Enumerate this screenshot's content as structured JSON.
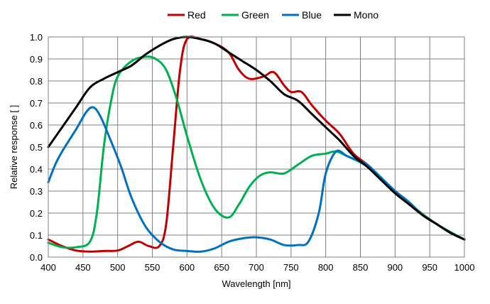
{
  "chart_data": {
    "type": "line",
    "xlabel": "Wavelength  [nm]",
    "ylabel": "Relative response [ ]",
    "xlim": [
      400,
      1000
    ],
    "ylim": [
      0.0,
      1.0
    ],
    "x_ticks": [
      "400",
      "450",
      "500",
      "550",
      "600",
      "650",
      "700",
      "750",
      "800",
      "850",
      "900",
      "950",
      "1000"
    ],
    "y_ticks": [
      "0.0",
      "0.1",
      "0.2",
      "0.3",
      "0.4",
      "0.5",
      "0.6",
      "0.7",
      "0.8",
      "0.9",
      "1.0"
    ],
    "grid": true,
    "legend_position": "top",
    "series": [
      {
        "name": "Red",
        "color": "#c00000",
        "points": [
          [
            400,
            0.08
          ],
          [
            420,
            0.05
          ],
          [
            440,
            0.03
          ],
          [
            460,
            0.025
          ],
          [
            480,
            0.028
          ],
          [
            500,
            0.03
          ],
          [
            515,
            0.05
          ],
          [
            530,
            0.07
          ],
          [
            545,
            0.05
          ],
          [
            560,
            0.05
          ],
          [
            570,
            0.15
          ],
          [
            580,
            0.5
          ],
          [
            590,
            0.85
          ],
          [
            600,
            0.99
          ],
          [
            620,
            0.99
          ],
          [
            640,
            0.97
          ],
          [
            660,
            0.93
          ],
          [
            675,
            0.85
          ],
          [
            690,
            0.81
          ],
          [
            710,
            0.82
          ],
          [
            725,
            0.84
          ],
          [
            740,
            0.78
          ],
          [
            750,
            0.75
          ],
          [
            765,
            0.75
          ],
          [
            780,
            0.69
          ],
          [
            800,
            0.62
          ],
          [
            820,
            0.56
          ],
          [
            840,
            0.47
          ],
          [
            860,
            0.42
          ],
          [
            880,
            0.36
          ],
          [
            900,
            0.3
          ],
          [
            920,
            0.25
          ],
          [
            940,
            0.19
          ],
          [
            960,
            0.15
          ],
          [
            980,
            0.11
          ],
          [
            1000,
            0.08
          ]
        ]
      },
      {
        "name": "Green",
        "color": "#00b050",
        "points": [
          [
            400,
            0.065
          ],
          [
            420,
            0.045
          ],
          [
            440,
            0.045
          ],
          [
            460,
            0.07
          ],
          [
            470,
            0.2
          ],
          [
            480,
            0.5
          ],
          [
            490,
            0.7
          ],
          [
            500,
            0.82
          ],
          [
            520,
            0.89
          ],
          [
            540,
            0.91
          ],
          [
            555,
            0.9
          ],
          [
            570,
            0.85
          ],
          [
            585,
            0.72
          ],
          [
            600,
            0.55
          ],
          [
            620,
            0.35
          ],
          [
            640,
            0.22
          ],
          [
            660,
            0.18
          ],
          [
            675,
            0.24
          ],
          [
            690,
            0.32
          ],
          [
            705,
            0.37
          ],
          [
            720,
            0.385
          ],
          [
            740,
            0.38
          ],
          [
            760,
            0.42
          ],
          [
            780,
            0.46
          ],
          [
            800,
            0.47
          ],
          [
            815,
            0.48
          ],
          [
            830,
            0.46
          ],
          [
            850,
            0.43
          ],
          [
            870,
            0.39
          ],
          [
            900,
            0.3
          ],
          [
            930,
            0.22
          ],
          [
            960,
            0.15
          ],
          [
            1000,
            0.08
          ]
        ]
      },
      {
        "name": "Blue",
        "color": "#0070c0",
        "points": [
          [
            400,
            0.34
          ],
          [
            410,
            0.42
          ],
          [
            420,
            0.48
          ],
          [
            440,
            0.58
          ],
          [
            455,
            0.66
          ],
          [
            465,
            0.68
          ],
          [
            475,
            0.64
          ],
          [
            490,
            0.53
          ],
          [
            505,
            0.41
          ],
          [
            520,
            0.27
          ],
          [
            540,
            0.14
          ],
          [
            560,
            0.07
          ],
          [
            580,
            0.035
          ],
          [
            600,
            0.028
          ],
          [
            620,
            0.025
          ],
          [
            640,
            0.04
          ],
          [
            660,
            0.07
          ],
          [
            680,
            0.085
          ],
          [
            700,
            0.09
          ],
          [
            720,
            0.08
          ],
          [
            740,
            0.055
          ],
          [
            760,
            0.055
          ],
          [
            775,
            0.07
          ],
          [
            790,
            0.2
          ],
          [
            800,
            0.38
          ],
          [
            815,
            0.48
          ],
          [
            830,
            0.46
          ],
          [
            845,
            0.44
          ],
          [
            860,
            0.42
          ],
          [
            880,
            0.36
          ],
          [
            900,
            0.3
          ],
          [
            920,
            0.25
          ],
          [
            940,
            0.19
          ],
          [
            960,
            0.15
          ],
          [
            980,
            0.11
          ],
          [
            1000,
            0.08
          ]
        ]
      },
      {
        "name": "Mono",
        "color": "#000000",
        "points": [
          [
            400,
            0.5
          ],
          [
            420,
            0.59
          ],
          [
            440,
            0.68
          ],
          [
            460,
            0.77
          ],
          [
            480,
            0.81
          ],
          [
            500,
            0.84
          ],
          [
            520,
            0.87
          ],
          [
            540,
            0.92
          ],
          [
            560,
            0.96
          ],
          [
            580,
            0.99
          ],
          [
            600,
            1.0
          ],
          [
            620,
            0.99
          ],
          [
            640,
            0.97
          ],
          [
            660,
            0.93
          ],
          [
            680,
            0.89
          ],
          [
            700,
            0.85
          ],
          [
            720,
            0.8
          ],
          [
            740,
            0.74
          ],
          [
            760,
            0.71
          ],
          [
            780,
            0.65
          ],
          [
            800,
            0.59
          ],
          [
            820,
            0.53
          ],
          [
            840,
            0.46
          ],
          [
            860,
            0.41
          ],
          [
            880,
            0.35
          ],
          [
            900,
            0.29
          ],
          [
            920,
            0.24
          ],
          [
            940,
            0.19
          ],
          [
            960,
            0.15
          ],
          [
            980,
            0.11
          ],
          [
            1000,
            0.08
          ]
        ]
      }
    ]
  }
}
